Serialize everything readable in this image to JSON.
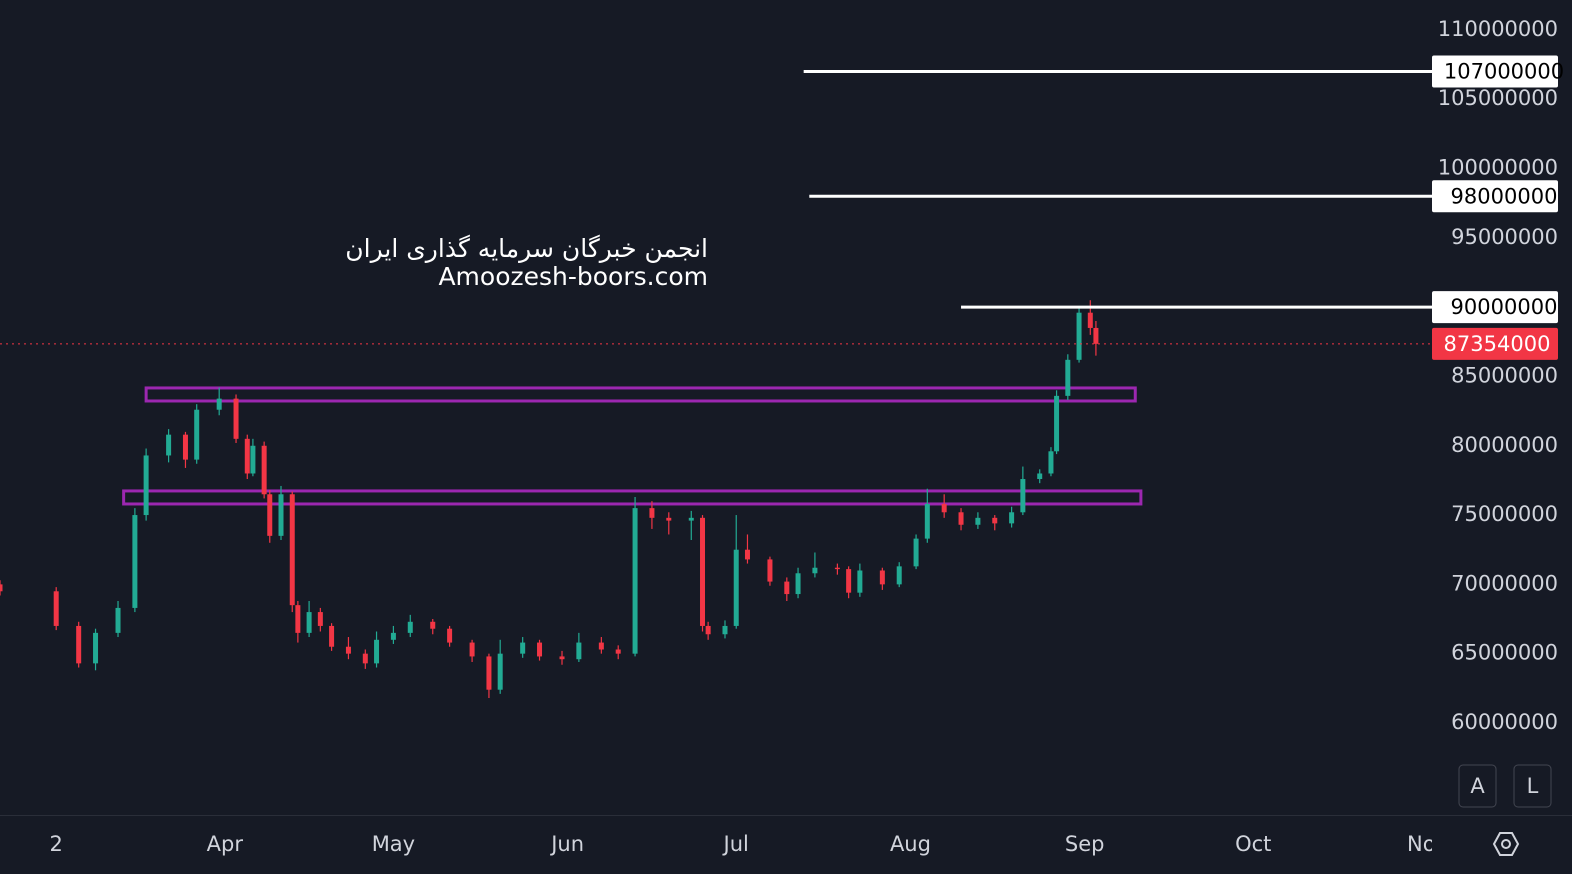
{
  "chart_data": {
    "type": "candlestick",
    "x": [
      51,
      61,
      65,
      68,
      72,
      75,
      77,
      81,
      84,
      86,
      90,
      93,
      95,
      96,
      98,
      99,
      101,
      103,
      104,
      106,
      108,
      110,
      113,
      116,
      118,
      121,
      124,
      128,
      131,
      135,
      138,
      140,
      144,
      147,
      151,
      154,
      158,
      161,
      164,
      167,
      170,
      174,
      176,
      177,
      180,
      182,
      184,
      188,
      191,
      193,
      196,
      200,
      202,
      204,
      208,
      211,
      214,
      216,
      219,
      222,
      225,
      228,
      231,
      233,
      236,
      238,
      239,
      241,
      243,
      245,
      246
    ],
    "open": [
      70000000,
      69500000,
      67000000,
      64300000,
      66500000,
      68300000,
      75000000,
      79300000,
      80800000,
      79000000,
      82600000,
      83400000,
      80500000,
      78000000,
      80000000,
      76500000,
      73500000,
      76500000,
      68500000,
      66500000,
      68000000,
      67000000,
      65500000,
      65000000,
      64300000,
      66000000,
      66500000,
      67300000,
      66800000,
      65800000,
      64800000,
      62400000,
      65000000,
      65800000,
      64800000,
      64600000,
      65800000,
      65300000,
      65000000,
      75500000,
      74800000,
      74600000,
      74800000,
      67000000,
      66400000,
      67000000,
      72500000,
      71800000,
      70200000,
      69300000,
      70800000,
      71200000,
      71100000,
      69400000,
      71000000,
      70000000,
      71300000,
      73300000,
      75800000,
      75200000,
      74300000,
      74800000,
      74400000,
      75200000,
      77600000,
      78000000,
      79600000,
      83600000,
      86200000,
      89600000,
      88500000
    ],
    "high": [
      70300000,
      69800000,
      67300000,
      66800000,
      68800000,
      75500000,
      79800000,
      81200000,
      81000000,
      83000000,
      84200000,
      83700000,
      80800000,
      80500000,
      80300000,
      76800000,
      77100000,
      76700000,
      68800000,
      68800000,
      68300000,
      67200000,
      66200000,
      65300000,
      66600000,
      67000000,
      67800000,
      67500000,
      67000000,
      66000000,
      65000000,
      66000000,
      66200000,
      66000000,
      65200000,
      66500000,
      66200000,
      65600000,
      76300000,
      76000000,
      75200000,
      75300000,
      75000000,
      67300000,
      67400000,
      75000000,
      73600000,
      72000000,
      70500000,
      71200000,
      72300000,
      71500000,
      71300000,
      71500000,
      71200000,
      71600000,
      73600000,
      76900000,
      76500000,
      75500000,
      75200000,
      75000000,
      75600000,
      78500000,
      78300000,
      79900000,
      84000000,
      86600000,
      90000000,
      90500000,
      89000000
    ],
    "low": [
      69200000,
      66700000,
      64000000,
      63800000,
      66200000,
      68000000,
      74600000,
      78800000,
      78400000,
      78700000,
      82200000,
      80200000,
      77600000,
      77800000,
      76200000,
      73000000,
      73200000,
      68000000,
      65800000,
      66200000,
      66600000,
      65200000,
      64600000,
      63900000,
      64000000,
      65700000,
      66200000,
      66400000,
      65500000,
      64400000,
      61800000,
      62100000,
      64700000,
      64500000,
      64200000,
      64400000,
      65000000,
      64600000,
      64800000,
      74000000,
      73600000,
      73200000,
      66600000,
      66000000,
      66100000,
      66800000,
      71500000,
      69900000,
      68800000,
      69000000,
      70500000,
      70700000,
      69000000,
      69100000,
      69600000,
      69800000,
      71100000,
      73000000,
      74800000,
      73900000,
      74000000,
      73900000,
      74100000,
      75000000,
      77300000,
      77800000,
      79400000,
      83300000,
      86000000,
      88000000,
      86500000
    ],
    "close": [
      69500000,
      67000000,
      64300000,
      66500000,
      68300000,
      75000000,
      79300000,
      80800000,
      79000000,
      82600000,
      83400000,
      80500000,
      78000000,
      80000000,
      76500000,
      73500000,
      76500000,
      68500000,
      66500000,
      68000000,
      67000000,
      65500000,
      65000000,
      64300000,
      66000000,
      66500000,
      67300000,
      66800000,
      65800000,
      64800000,
      62400000,
      65000000,
      65800000,
      64800000,
      64600000,
      65800000,
      65300000,
      65000000,
      75500000,
      74800000,
      74600000,
      74800000,
      67000000,
      66400000,
      67000000,
      72500000,
      71800000,
      70200000,
      69300000,
      70800000,
      71200000,
      71100000,
      69400000,
      71000000,
      70000000,
      71300000,
      73300000,
      75800000,
      75200000,
      74300000,
      74800000,
      74400000,
      75200000,
      77600000,
      78000000,
      79600000,
      83600000,
      86200000,
      89600000,
      88500000,
      87354000
    ],
    "up_color": "#22ab94",
    "down_color": "#f23645",
    "xlim": [
      51,
      305.8
    ],
    "xticks": [
      {
        "value": 61,
        "label": "2"
      },
      {
        "value": 91,
        "label": "Apr"
      },
      {
        "value": 121,
        "label": "May"
      },
      {
        "value": 152,
        "label": "Jun"
      },
      {
        "value": 182,
        "label": "Jul"
      },
      {
        "value": 213,
        "label": "Aug"
      },
      {
        "value": 244,
        "label": "Sep"
      },
      {
        "value": 274,
        "label": "Oct"
      },
      {
        "value": 305,
        "label": "Nov"
      }
    ],
    "ylim": [
      53360000,
      112160000
    ],
    "yticks": [
      60000000,
      65000000,
      70000000,
      75000000,
      80000000,
      85000000,
      95000000,
      100000000,
      105000000,
      110000000
    ],
    "grid": false,
    "levels": [
      {
        "value": 107000000,
        "start": 194
      },
      {
        "value": 98000000,
        "start": 195
      },
      {
        "value": 90000000,
        "start": 222
      }
    ],
    "level_color": "#ffffff",
    "zones": [
      {
        "top": 84170000,
        "bottom": 83230000,
        "start": 77,
        "end": 253
      },
      {
        "top": 76740000,
        "bottom": 75800000,
        "start": 73,
        "end": 254
      }
    ],
    "zone_color": "#9c27b0",
    "last_price": 87354000,
    "last_color": "#f23645",
    "watermark": [
      "انجمن خبرگان سرمایه گذاری ایران",
      "Amoozesh-boors.com"
    ],
    "buttons": [
      "A",
      "L"
    ]
  }
}
